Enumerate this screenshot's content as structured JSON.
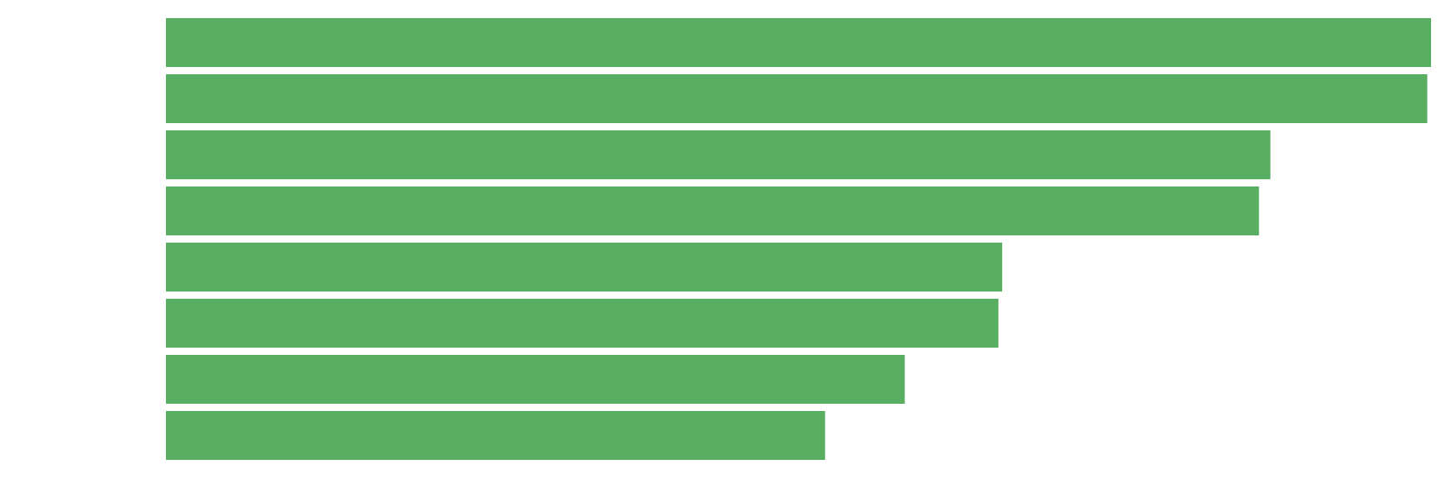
{
  "chart_data": {
    "type": "bar",
    "orientation": "horizontal",
    "title": "",
    "xlabel": "",
    "ylabel": "",
    "categories": [
      "",
      "",
      "",
      "",
      "",
      "",
      "",
      ""
    ],
    "values": [
      100,
      99.7,
      87.3,
      86.4,
      66.1,
      65.8,
      58.4,
      52.1
    ],
    "xlim": [
      0,
      100
    ],
    "grid": false,
    "legend": "none",
    "bar_color": "#5aae62",
    "background": "#ffffff"
  }
}
